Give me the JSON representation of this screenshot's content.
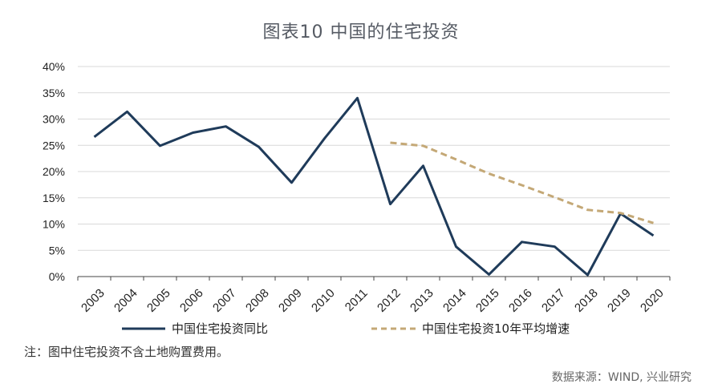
{
  "title": "图表10  中国的住宅投资",
  "note": "注：图中住宅投资不含土地购置费用。",
  "source": "数据来源：WIND, 兴业研究",
  "chart_data": {
    "type": "line",
    "categories": [
      "2003",
      "2004",
      "2005",
      "2006",
      "2007",
      "2008",
      "2009",
      "2010",
      "2011",
      "2012",
      "2013",
      "2014",
      "2015",
      "2016",
      "2017",
      "2018",
      "2019",
      "2020"
    ],
    "y_ticks": [
      "0%",
      "5%",
      "10%",
      "15%",
      "20%",
      "25%",
      "30%",
      "35%",
      "40%"
    ],
    "ylim": [
      0,
      40
    ],
    "y_unit": "%",
    "grid": true,
    "legend_position": "bottom",
    "series": [
      {
        "name": "中国住宅投资同比",
        "color": "#1f3b5a",
        "style": "solid",
        "values": [
          26.6,
          31.4,
          24.9,
          27.4,
          28.6,
          24.7,
          17.9,
          26.3,
          34.0,
          13.8,
          21.1,
          5.7,
          0.4,
          6.6,
          5.7,
          0.3,
          12.0,
          7.8
        ]
      },
      {
        "name": "中国住宅投资10年平均增速",
        "color": "#c4a876",
        "style": "dashed",
        "values": [
          null,
          null,
          null,
          null,
          null,
          null,
          null,
          null,
          null,
          25.5,
          24.9,
          22.3,
          19.6,
          17.4,
          15.1,
          12.7,
          12.1,
          10.2
        ]
      }
    ]
  }
}
